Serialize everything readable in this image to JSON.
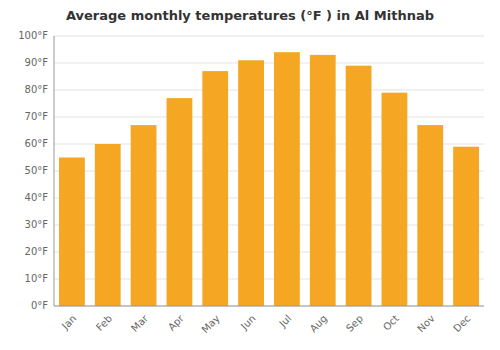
{
  "chart_data": {
    "type": "bar",
    "title": "Average monthly temperatures (°F ) in Al Mithnab",
    "categories": [
      "Jan",
      "Feb",
      "Mar",
      "Apr",
      "May",
      "Jun",
      "Jul",
      "Aug",
      "Sep",
      "Oct",
      "Nov",
      "Dec"
    ],
    "values": [
      55,
      60,
      67,
      77,
      87,
      91,
      94,
      93,
      89,
      79,
      67,
      59
    ],
    "color": "#F5A623",
    "ylim": [
      0,
      100
    ],
    "yticks": [
      {
        "value": 0,
        "label": "0°F"
      },
      {
        "value": 10,
        "label": "10°F"
      },
      {
        "value": 20,
        "label": "20°F"
      },
      {
        "value": 30,
        "label": "30°F"
      },
      {
        "value": 40,
        "label": "40°F"
      },
      {
        "value": 50,
        "label": "50°F"
      },
      {
        "value": 60,
        "label": "60°F"
      },
      {
        "value": 70,
        "label": "70°F"
      },
      {
        "value": 80,
        "label": "80°F"
      },
      {
        "value": 90,
        "label": "90°F"
      },
      {
        "value": 100,
        "label": "100°F"
      }
    ],
    "grid": true
  }
}
